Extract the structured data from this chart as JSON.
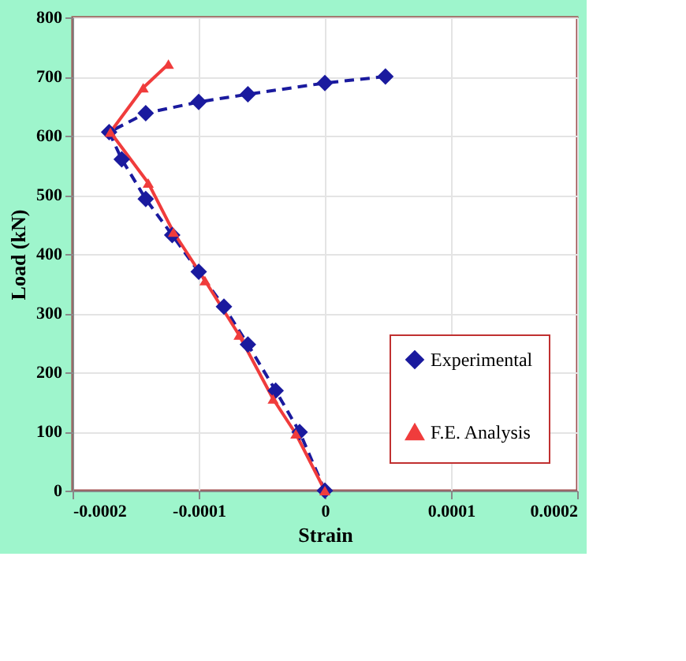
{
  "chart_data": {
    "type": "line",
    "xlabel": "Strain",
    "ylabel": "Load (kN)",
    "xlim": [
      -0.0002,
      0.0002
    ],
    "xticks": [
      -0.0002,
      -0.0001,
      0,
      0.0001,
      0.0002
    ],
    "ylim": [
      0,
      800
    ],
    "yticks": [
      0,
      100,
      200,
      300,
      400,
      500,
      600,
      700,
      800
    ],
    "grid": true,
    "legend": "bottom right",
    "series": [
      {
        "name": "Experimental",
        "color": "#1a1a9e",
        "marker": "diamond",
        "line_style": "dashed",
        "x": [
          0,
          -2e-05,
          -3.9e-05,
          -6.1e-05,
          -8e-05,
          -0.0001,
          -0.000121,
          -0.000142,
          -0.000161,
          -0.000171,
          -0.000142,
          -0.0001,
          -6.1e-05,
          0,
          4.8e-05
        ],
        "values": [
          0,
          99,
          169,
          247,
          311,
          370,
          432,
          493,
          560,
          606,
          638,
          657,
          670,
          689,
          700
        ]
      },
      {
        "name": "F.E. Analysis",
        "color": "#f03c3c",
        "marker": "triangle",
        "line_style": "solid",
        "x": [
          0,
          -2.3e-05,
          -4.1e-05,
          -6.8e-05,
          -9.5e-05,
          -0.00012,
          -0.00014,
          -0.00017,
          -0.000144,
          -0.000124
        ],
        "values": [
          0,
          96,
          155,
          263,
          355,
          437,
          520,
          606,
          681,
          721
        ]
      }
    ]
  }
}
